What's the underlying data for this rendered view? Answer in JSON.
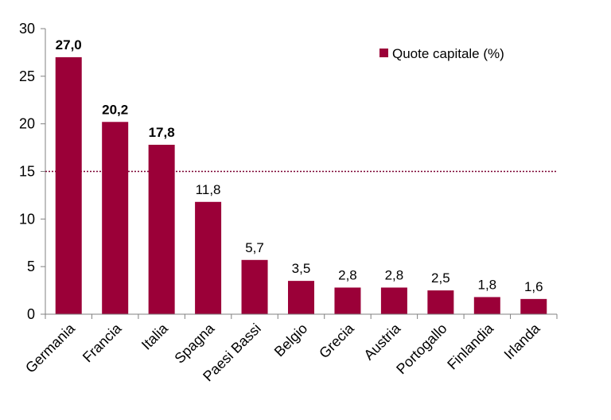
{
  "chart_data": {
    "type": "bar",
    "categories": [
      "Germania",
      "Francia",
      "Italia",
      "Spagna",
      "Paesi Bassi",
      "Belgio",
      "Grecia",
      "Austria",
      "Portogallo",
      "Finlandia",
      "Irlanda"
    ],
    "series": [
      {
        "name": "Quote capitale (%)",
        "values": [
          27.0,
          20.2,
          17.8,
          11.8,
          5.7,
          3.5,
          2.8,
          2.8,
          2.5,
          1.8,
          1.6
        ],
        "value_labels": [
          "27,0",
          "20,2",
          "17,8",
          "11,8",
          "5,7",
          "3,5",
          "2,8",
          "2,8",
          "2,5",
          "1,8",
          "1,6"
        ],
        "bold_labels": [
          true,
          true,
          true,
          false,
          false,
          false,
          false,
          false,
          false,
          false,
          false
        ]
      }
    ],
    "yticks": [
      "0",
      "5",
      "10",
      "15",
      "20",
      "25",
      "30"
    ],
    "ylim": [
      0,
      30
    ],
    "reference_line": 15,
    "grid": false,
    "legend_position": "top-right",
    "bar_color": "#9b0038",
    "reference_line_color": "#7a0030"
  }
}
